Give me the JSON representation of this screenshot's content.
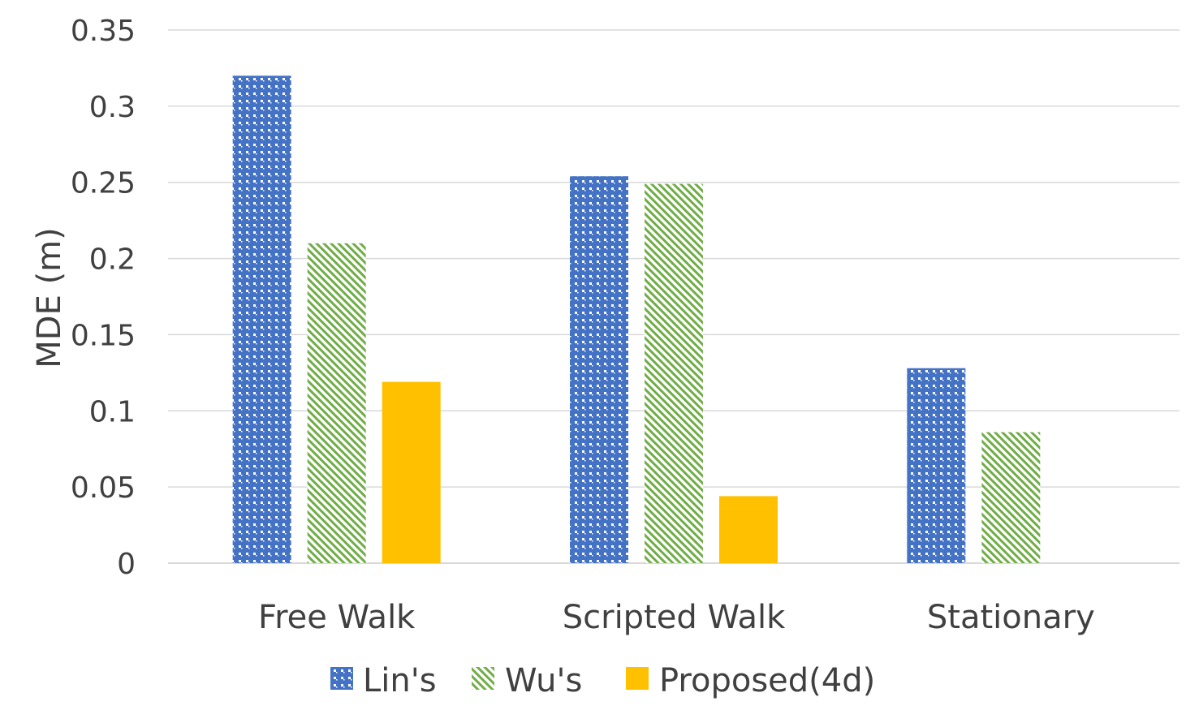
{
  "chart_data": {
    "type": "bar",
    "categories": [
      "Free Walk",
      "Scripted Walk",
      "Stationary"
    ],
    "series": [
      {
        "name": "Lin's",
        "values": [
          0.32,
          0.254,
          0.128
        ],
        "color": "#4472C4",
        "pattern": "dotted-grid"
      },
      {
        "name": "Wu's",
        "values": [
          0.21,
          0.249,
          0.086
        ],
        "color": "#70AD47",
        "pattern": "diagonal-stripes"
      },
      {
        "name": "Proposed(4d)",
        "values": [
          0.119,
          0.044,
          0
        ],
        "color": "#FFC000",
        "pattern": "solid"
      }
    ],
    "title": "",
    "xlabel": "",
    "ylabel": "MDE (m)",
    "ylim": [
      0,
      0.35
    ],
    "yticks": [
      0,
      0.05,
      0.1,
      0.15,
      0.2,
      0.25,
      0.3,
      0.35
    ],
    "ytick_labels": [
      "0",
      "0.05",
      "0.1",
      "0.15",
      "0.2",
      "0.25",
      "0.3",
      "0.35"
    ],
    "grid": true,
    "legend": "bottom"
  }
}
